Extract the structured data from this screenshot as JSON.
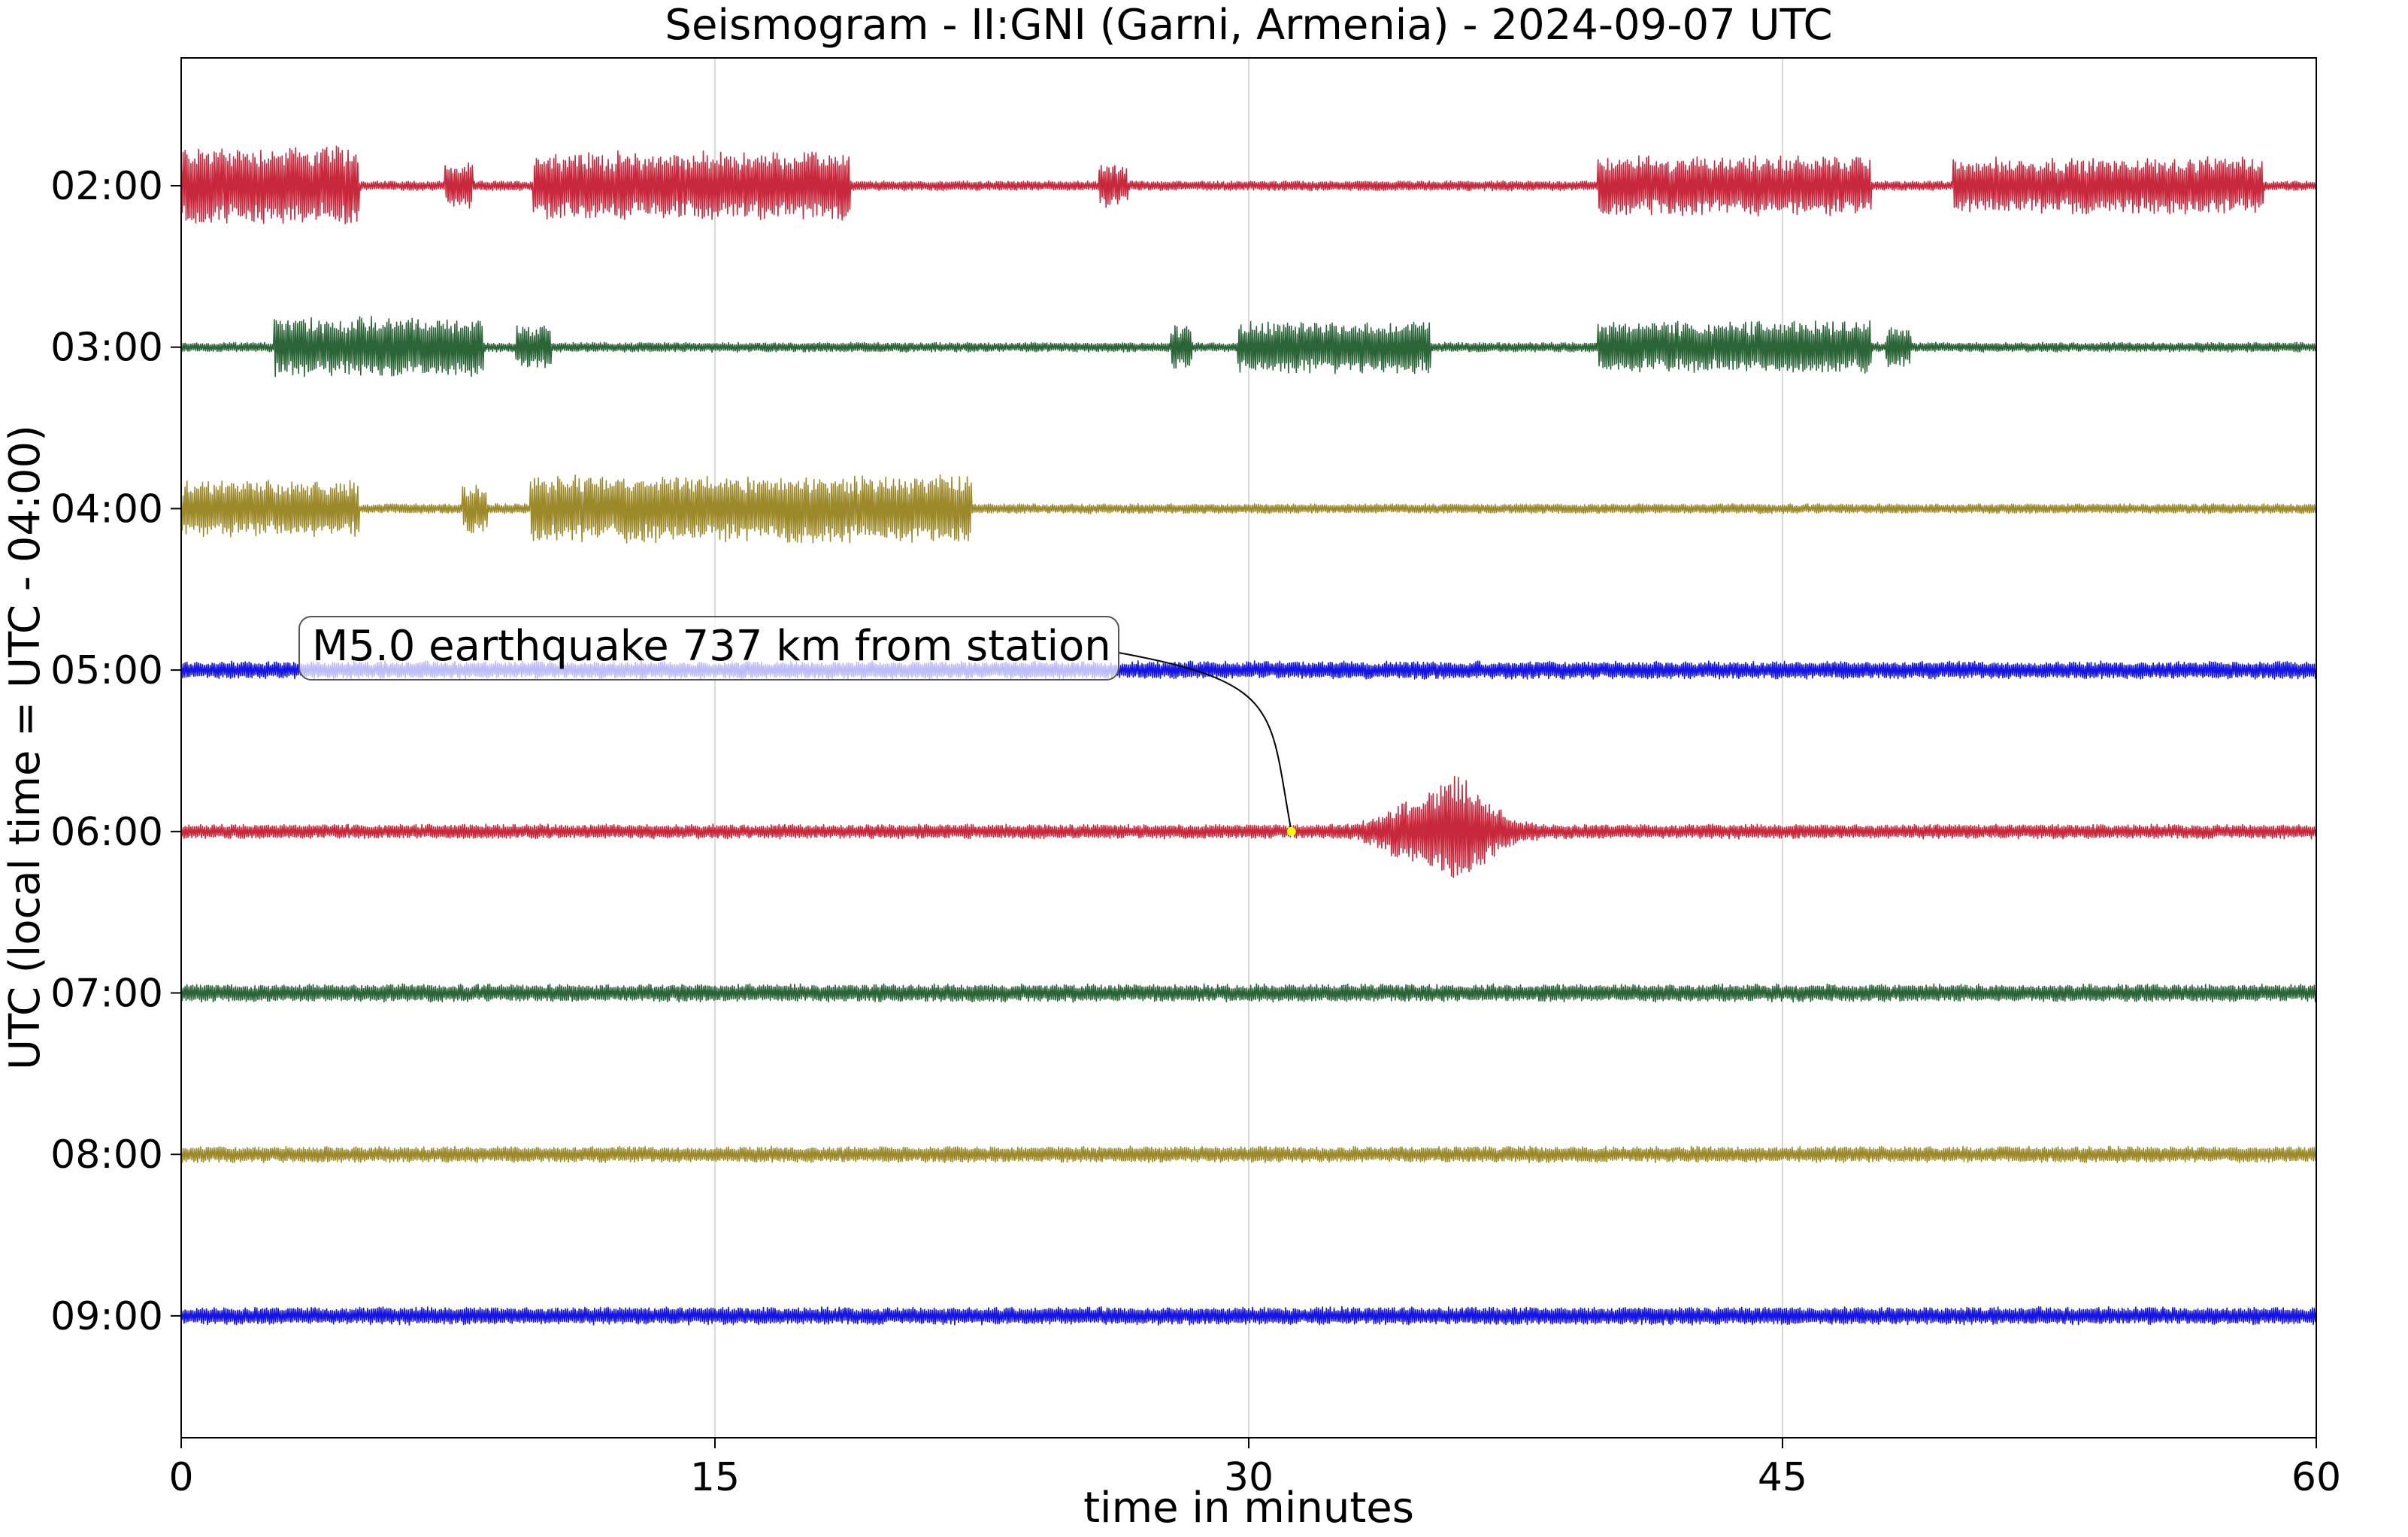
{
  "chart_data": {
    "type": "line",
    "title": "Seismogram - II:GNI (Garni, Armenia) - 2024-09-07 UTC",
    "xlabel": "time in minutes",
    "ylabel": "UTC (local time = UTC - 04:00)",
    "xlim": [
      0,
      60
    ],
    "xticks": [
      {
        "value": 0,
        "label": "0"
      },
      {
        "value": 15,
        "label": "15"
      },
      {
        "value": 30,
        "label": "30"
      },
      {
        "value": 45,
        "label": "45"
      },
      {
        "value": 60,
        "label": "60"
      }
    ],
    "grid": "vertical",
    "rows": [
      {
        "label": "02:00",
        "color": "#c8283c",
        "noise": 0.12,
        "bursts": [
          [
            0,
            5,
            1.0
          ],
          [
            7.4,
            8.2,
            0.55
          ],
          [
            9.9,
            18.8,
            0.85
          ],
          [
            25.8,
            26.6,
            0.55
          ],
          [
            39.8,
            47.5,
            0.75
          ],
          [
            49.8,
            58.5,
            0.7
          ]
        ]
      },
      {
        "label": "03:00",
        "color": "#2a6437",
        "noise": 0.12,
        "bursts": [
          [
            2.6,
            8.5,
            0.75
          ],
          [
            9.4,
            10.4,
            0.55
          ],
          [
            27.8,
            28.4,
            0.55
          ],
          [
            29.7,
            35.1,
            0.65
          ],
          [
            39.8,
            47.5,
            0.65
          ],
          [
            47.9,
            48.6,
            0.55
          ]
        ]
      },
      {
        "label": "04:00",
        "color": "#9c8a2a",
        "noise": 0.12,
        "bursts": [
          [
            0,
            5,
            0.7
          ],
          [
            7.9,
            8.6,
            0.6
          ],
          [
            9.8,
            22.2,
            0.85
          ]
        ]
      },
      {
        "label": "05:00",
        "color": "#1414e6",
        "noise": 0.22,
        "bursts": []
      },
      {
        "label": "06:00",
        "color": "#c8283c",
        "noise": 0.18,
        "quake": {
          "start": 32.5,
          "peak": 36.0,
          "end": 40,
          "amp": 1.45
        }
      },
      {
        "label": "07:00",
        "color": "#2a6437",
        "noise": 0.22,
        "bursts": []
      },
      {
        "label": "08:00",
        "color": "#9c8a2a",
        "noise": 0.2,
        "bursts": []
      },
      {
        "label": "09:00",
        "color": "#1414e6",
        "noise": 0.22,
        "bursts": []
      }
    ],
    "annotation": {
      "text": "M5.0 earthquake 737 km from station",
      "event_row": "06:00",
      "event_time_minutes": 31.2,
      "marker_color": "#ffff00"
    }
  }
}
